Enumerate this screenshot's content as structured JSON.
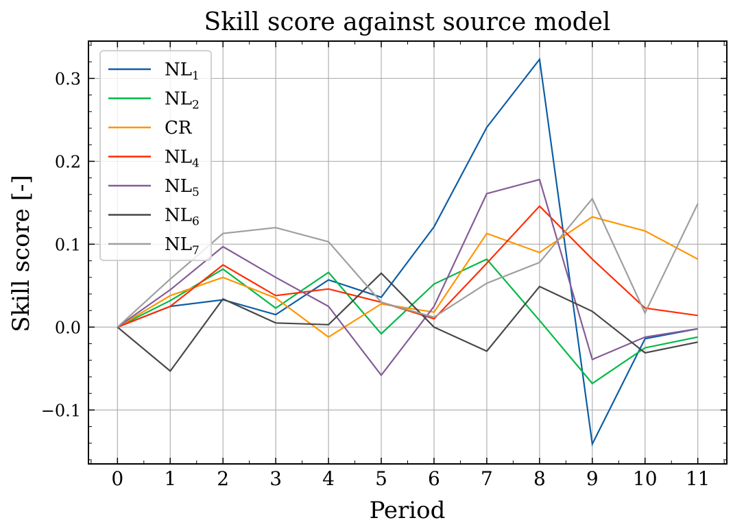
{
  "chart_data": {
    "type": "line",
    "title": "Skill score against source model",
    "xlabel": "Period",
    "ylabel": "Skill score [-]",
    "x": [
      0,
      1,
      2,
      3,
      4,
      5,
      6,
      7,
      8,
      9,
      10,
      11
    ],
    "xlim": [
      -0.55,
      11.55
    ],
    "ylim": [
      -0.165,
      0.345
    ],
    "yticks": [
      -0.1,
      0.0,
      0.1,
      0.2,
      0.3
    ],
    "ytick_labels": [
      "−0.1",
      "0.0",
      "0.1",
      "0.2",
      "0.3"
    ],
    "xtick_labels": [
      "0",
      "1",
      "2",
      "3",
      "4",
      "5",
      "6",
      "7",
      "8",
      "9",
      "10",
      "11"
    ],
    "grid": true,
    "legend_position": "top-left",
    "series": [
      {
        "name": "NL",
        "sub": "1",
        "color": "#0C5DA5",
        "values": [
          0.0,
          0.025,
          0.033,
          0.015,
          0.057,
          0.036,
          0.121,
          0.241,
          0.323,
          -0.141,
          -0.014,
          -0.002
        ]
      },
      {
        "name": "NL",
        "sub": "2",
        "color": "#00B945",
        "values": [
          0.0,
          0.032,
          0.07,
          0.023,
          0.066,
          -0.008,
          0.052,
          0.082,
          0.008,
          -0.068,
          -0.025,
          -0.012
        ]
      },
      {
        "name": "CR",
        "sub": "",
        "color": "#FF9500",
        "values": [
          0.0,
          0.038,
          0.06,
          0.035,
          -0.012,
          0.028,
          0.018,
          0.113,
          0.09,
          0.133,
          0.116,
          0.082
        ]
      },
      {
        "name": "NL",
        "sub": "4",
        "color": "#FF2C00",
        "values": [
          0.0,
          0.025,
          0.075,
          0.038,
          0.046,
          0.03,
          0.01,
          0.077,
          0.146,
          0.082,
          0.023,
          0.014
        ]
      },
      {
        "name": "NL",
        "sub": "5",
        "color": "#845B97",
        "values": [
          0.0,
          0.045,
          0.097,
          0.06,
          0.025,
          -0.058,
          0.025,
          0.161,
          0.178,
          -0.039,
          -0.012,
          -0.002
        ]
      },
      {
        "name": "NL",
        "sub": "6",
        "color": "#474747",
        "values": [
          0.0,
          -0.053,
          0.034,
          0.005,
          0.003,
          0.065,
          0.0,
          -0.029,
          0.049,
          0.019,
          -0.031,
          -0.018
        ]
      },
      {
        "name": "NL",
        "sub": "7",
        "color": "#9E9E9E",
        "values": [
          0.0,
          0.058,
          0.113,
          0.12,
          0.103,
          0.03,
          0.012,
          0.053,
          0.078,
          0.155,
          0.017,
          0.149
        ]
      }
    ]
  }
}
